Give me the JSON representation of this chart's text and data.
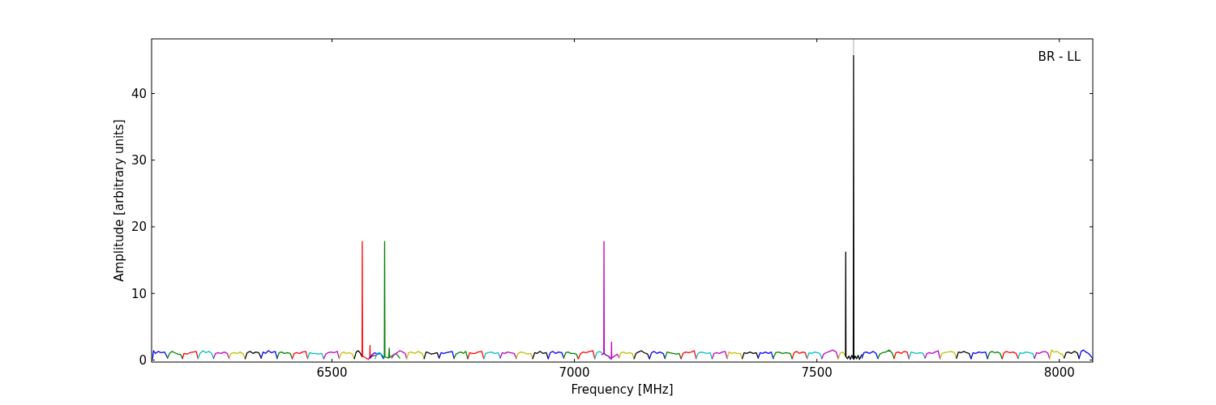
{
  "chart_data": {
    "type": "line",
    "xlabel": "Frequency [MHz]",
    "ylabel": "Amplitude [arbitrary units]",
    "annotations": [
      "BR - LL"
    ],
    "xlim": [
      6128,
      8069
    ],
    "ylim": [
      -0.3,
      48.2
    ],
    "xticks": [
      6500,
      7000,
      7500,
      8000
    ],
    "yticks": [
      0,
      10,
      20,
      30,
      40
    ],
    "grid": false,
    "marker": "none",
    "line_style": "solid",
    "series": [
      {
        "color": "#0000ff",
        "x": [
          6130,
          6132,
          6136,
          6142,
          6148,
          6155,
          6161
        ],
        "values": [
          0.2,
          1.4,
          1.0,
          1.3,
          1.1,
          1.2,
          0.3
        ]
      },
      {
        "color": "#008000",
        "x": [
          6161,
          6165,
          6170,
          6176,
          6182,
          6188,
          6192
        ],
        "values": [
          0.3,
          1.0,
          1.3,
          1.1,
          0.9,
          0.8,
          0.2
        ]
      },
      {
        "color": "#ff0000",
        "x": [
          6192,
          6195,
          6201,
          6207,
          6214,
          6220,
          6224
        ],
        "values": [
          0.3,
          1.0,
          0.9,
          1.1,
          1.2,
          1.3,
          0.2
        ]
      },
      {
        "color": "#00bfbf",
        "x": [
          6224,
          6228,
          6234,
          6240,
          6246,
          6252,
          6256
        ],
        "values": [
          0.3,
          1.0,
          1.4,
          1.1,
          1.3,
          1.0,
          0.2
        ]
      },
      {
        "color": "#bf00bf",
        "x": [
          6256,
          6260,
          6265,
          6271,
          6278,
          6284,
          6288
        ],
        "values": [
          0.3,
          1.0,
          1.1,
          1.0,
          1.2,
          1.0,
          0.2
        ]
      },
      {
        "color": "#bfbf00",
        "x": [
          6288,
          6292,
          6298,
          6304,
          6311,
          6317,
          6321
        ],
        "values": [
          0.3,
          1.0,
          1.1,
          1.0,
          1.2,
          0.9,
          0.2
        ]
      },
      {
        "color": "#000000",
        "x": [
          6321,
          6325,
          6331,
          6337,
          6343,
          6349,
          6354
        ],
        "values": [
          0.2,
          1.1,
          1.3,
          1.0,
          1.2,
          1.1,
          0.3
        ]
      },
      {
        "color": "#0000ff",
        "x": [
          6354,
          6358,
          6363,
          6369,
          6375,
          6383,
          6387
        ],
        "values": [
          0.3,
          1.2,
          1.0,
          1.4,
          1.1,
          1.3,
          0.2
        ]
      },
      {
        "color": "#008000",
        "x": [
          6387,
          6391,
          6396,
          6402,
          6408,
          6414,
          6418
        ],
        "values": [
          0.3,
          1.1,
          1.2,
          1.0,
          1.1,
          1.0,
          0.2
        ]
      },
      {
        "color": "#ff0000",
        "x": [
          6418,
          6422,
          6427,
          6433,
          6439,
          6446,
          6450
        ],
        "values": [
          0.2,
          1.0,
          1.1,
          1.0,
          1.2,
          1.3,
          0.2
        ]
      },
      {
        "color": "#00bfbf",
        "x": [
          6450,
          6454,
          6459,
          6465,
          6471,
          6479,
          6483
        ],
        "values": [
          0.3,
          1.1,
          1.0,
          1.0,
          0.9,
          1.0,
          0.2
        ]
      },
      {
        "color": "#bf00bf",
        "x": [
          6483,
          6487,
          6492,
          6498,
          6504,
          6511,
          6515
        ],
        "values": [
          0.2,
          0.9,
          1.1,
          1.2,
          1.1,
          1.3,
          0.2
        ]
      },
      {
        "color": "#bfbf00",
        "x": [
          6515,
          6519,
          6524,
          6530,
          6536,
          6542,
          6546
        ],
        "values": [
          0.2,
          1.0,
          1.2,
          1.0,
          1.1,
          0.9,
          0.2
        ]
      },
      {
        "color": "#000000",
        "x": [
          6546,
          6550,
          6554,
          6558,
          6562
        ],
        "values": [
          0.2,
          1.2,
          1.4,
          1.1,
          0.5
        ]
      },
      {
        "color": "#ff0000",
        "x": [
          6562,
          6562.5,
          6563,
          6566,
          6570,
          6575,
          6578,
          6578.5,
          6579,
          6583,
          6588,
          6593
        ],
        "values": [
          0.5,
          17.8,
          0.6,
          0.5,
          0.3,
          0.1,
          0.4,
          2.2,
          0.3,
          0.6,
          0.7,
          0.8
        ]
      },
      {
        "color": "#0000ff",
        "x": [
          6578,
          6583,
          6588,
          6594,
          6600,
          6606
        ],
        "values": [
          0.3,
          0.8,
          1.1,
          0.9,
          1.0,
          0.2
        ]
      },
      {
        "color": "#00bfbf",
        "x": [
          6589,
          6593,
          6598,
          6603,
          6608
        ],
        "values": [
          0.2,
          1.0,
          1.1,
          0.8,
          0.3
        ]
      },
      {
        "color": "#008000",
        "x": [
          6606,
          6608,
          6608.6,
          6609.2,
          6612,
          6617,
          6618,
          6619,
          6625,
          6632,
          6640
        ],
        "values": [
          0.3,
          0.6,
          17.8,
          0.5,
          0.4,
          0.3,
          1.8,
          0.4,
          0.7,
          1.0,
          0.3
        ]
      },
      {
        "color": "#bf00bf",
        "x": [
          6623,
          6628,
          6634,
          6640,
          6646,
          6651,
          6654
        ],
        "values": [
          0.3,
          0.8,
          1.1,
          1.4,
          1.2,
          1.0,
          0.2
        ]
      },
      {
        "color": "#bfbf00",
        "x": [
          6654,
          6658,
          6664,
          6671,
          6678,
          6686,
          6690
        ],
        "values": [
          0.2,
          1.1,
          1.2,
          1.0,
          1.3,
          1.0,
          0.2
        ]
      },
      {
        "color": "#000000",
        "x": [
          6690,
          6694,
          6699,
          6705,
          6711,
          6717,
          6721
        ],
        "values": [
          0.2,
          1.2,
          1.1,
          0.9,
          1.0,
          1.1,
          0.3
        ]
      },
      {
        "color": "#0000ff",
        "x": [
          6721,
          6725,
          6730,
          6736,
          6742,
          6748,
          6752
        ],
        "values": [
          0.3,
          1.1,
          1.0,
          1.1,
          1.2,
          1.3,
          0.2
        ]
      },
      {
        "color": "#008000",
        "x": [
          6752,
          6756,
          6761,
          6766,
          6771,
          6776,
          6780
        ],
        "values": [
          0.3,
          0.9,
          1.1,
          1.2,
          1.0,
          1.3,
          0.2
        ]
      },
      {
        "color": "#ff0000",
        "x": [
          6780,
          6784,
          6789,
          6795,
          6801,
          6809,
          6813
        ],
        "values": [
          0.2,
          1.1,
          1.0,
          1.0,
          1.2,
          1.3,
          0.2
        ]
      },
      {
        "color": "#00bfbf",
        "x": [
          6813,
          6817,
          6822,
          6829,
          6836,
          6843,
          6847
        ],
        "values": [
          0.2,
          1.0,
          1.1,
          1.2,
          1.0,
          1.1,
          0.3
        ]
      },
      {
        "color": "#bf00bf",
        "x": [
          6847,
          6851,
          6856,
          6862,
          6868,
          6876,
          6880
        ],
        "values": [
          0.3,
          1.1,
          1.0,
          1.2,
          1.1,
          1.0,
          0.2
        ]
      },
      {
        "color": "#bfbf00",
        "x": [
          6880,
          6884,
          6889,
          6896,
          6903,
          6910,
          6914
        ],
        "values": [
          0.3,
          1.0,
          1.2,
          1.1,
          0.9,
          1.0,
          0.2
        ]
      },
      {
        "color": "#000000",
        "x": [
          6914,
          6918,
          6923,
          6929,
          6935,
          6942,
          6946
        ],
        "values": [
          0.2,
          1.1,
          1.0,
          1.3,
          1.0,
          1.1,
          0.2
        ]
      },
      {
        "color": "#0000ff",
        "x": [
          6946,
          6950,
          6955,
          6961,
          6967,
          6974,
          6978
        ],
        "values": [
          0.2,
          1.1,
          1.3,
          1.0,
          1.2,
          1.1,
          0.3
        ]
      },
      {
        "color": "#008000",
        "x": [
          6978,
          6982,
          6987,
          6993,
          6999,
          7004,
          7008
        ],
        "values": [
          0.3,
          1.1,
          1.2,
          1.0,
          1.0,
          0.9,
          0.2
        ]
      },
      {
        "color": "#ff0000",
        "x": [
          7008,
          7012,
          7017,
          7024,
          7031,
          7038,
          7042
        ],
        "values": [
          0.2,
          0.9,
          1.2,
          1.1,
          1.3,
          1.4,
          0.2
        ]
      },
      {
        "color": "#00bfbf",
        "x": [
          7042,
          7046,
          7052,
          7058,
          7064,
          7070,
          7073
        ],
        "values": [
          0.2,
          1.1,
          1.3,
          1.0,
          0.8,
          0.6,
          0.2
        ]
      },
      {
        "color": "#bf00bf",
        "x": [
          7056,
          7060.5,
          7061,
          7061.5,
          7066,
          7072,
          7076,
          7076.5,
          7077,
          7083,
          7088,
          7092
        ],
        "values": [
          0.8,
          1.0,
          17.8,
          1.0,
          0.7,
          0.5,
          0.1,
          2.7,
          0.3,
          0.6,
          0.9,
          0.4
        ]
      },
      {
        "color": "#bfbf00",
        "x": [
          7092,
          7096,
          7101,
          7107,
          7113,
          7119,
          7123
        ],
        "values": [
          0.3,
          1.1,
          1.2,
          1.0,
          1.1,
          1.0,
          0.2
        ]
      },
      {
        "color": "#000000",
        "x": [
          7123,
          7127,
          7132,
          7138,
          7144,
          7151,
          7155
        ],
        "values": [
          0.2,
          1.0,
          1.2,
          1.4,
          1.1,
          0.9,
          0.2
        ]
      },
      {
        "color": "#0000ff",
        "x": [
          7155,
          7159,
          7164,
          7170,
          7176,
          7183,
          7187
        ],
        "values": [
          0.2,
          1.1,
          1.3,
          1.0,
          1.2,
          1.0,
          0.2
        ]
      },
      {
        "color": "#008000",
        "x": [
          7187,
          7191,
          7196,
          7203,
          7210,
          7216,
          7220
        ],
        "values": [
          0.3,
          1.2,
          1.1,
          1.0,
          0.9,
          1.0,
          0.2
        ]
      },
      {
        "color": "#ff0000",
        "x": [
          7220,
          7224,
          7229,
          7235,
          7241,
          7247,
          7251
        ],
        "values": [
          0.2,
          1.0,
          1.2,
          1.1,
          1.2,
          1.4,
          0.2
        ]
      },
      {
        "color": "#00bfbf",
        "x": [
          7251,
          7255,
          7260,
          7267,
          7274,
          7280,
          7284
        ],
        "values": [
          0.3,
          1.0,
          1.2,
          1.1,
          1.0,
          1.1,
          0.2
        ]
      },
      {
        "color": "#bf00bf",
        "x": [
          7284,
          7288,
          7293,
          7299,
          7305,
          7311,
          7315
        ],
        "values": [
          0.2,
          1.0,
          1.1,
          1.0,
          1.2,
          1.3,
          0.2
        ]
      },
      {
        "color": "#bfbf00",
        "x": [
          7315,
          7319,
          7324,
          7330,
          7336,
          7342,
          7346
        ],
        "values": [
          0.3,
          1.2,
          1.0,
          1.1,
          1.0,
          1.0,
          0.2
        ]
      },
      {
        "color": "#000000",
        "x": [
          7346,
          7350,
          7355,
          7362,
          7369,
          7375,
          7379
        ],
        "values": [
          0.2,
          1.1,
          1.0,
          1.2,
          1.0,
          1.1,
          0.3
        ]
      },
      {
        "color": "#0000ff",
        "x": [
          7379,
          7383,
          7388,
          7394,
          7400,
          7406,
          7410
        ],
        "values": [
          0.3,
          1.1,
          1.0,
          1.2,
          1.0,
          1.2,
          0.2
        ]
      },
      {
        "color": "#008000",
        "x": [
          7410,
          7415,
          7421,
          7429,
          7437,
          7445,
          7449
        ],
        "values": [
          0.3,
          1.1,
          1.2,
          1.0,
          1.1,
          1.0,
          0.2
        ]
      },
      {
        "color": "#ff0000",
        "x": [
          7449,
          7453,
          7458,
          7464,
          7470,
          7476,
          7480
        ],
        "values": [
          0.2,
          1.1,
          1.3,
          1.0,
          1.2,
          1.1,
          0.2
        ]
      },
      {
        "color": "#00bfbf",
        "x": [
          7480,
          7484,
          7489,
          7495,
          7501,
          7506,
          7510
        ],
        "values": [
          0.3,
          1.1,
          1.0,
          1.2,
          1.1,
          1.0,
          0.3
        ]
      },
      {
        "color": "#bf00bf",
        "x": [
          7510,
          7514,
          7519,
          7526,
          7533,
          7540,
          7544
        ],
        "values": [
          0.2,
          0.9,
          1.1,
          1.3,
          1.5,
          1.2,
          0.2
        ]
      },
      {
        "color": "#bfbf00",
        "x": [
          7544,
          7548,
          7552,
          7556,
          7559
        ],
        "values": [
          0.2,
          1.0,
          1.2,
          1.0,
          0.7
        ]
      },
      {
        "color": "#bfbfbf",
        "x": [
          7575.7,
          7575.7
        ],
        "values": [
          45.7,
          48.2
        ]
      },
      {
        "color": "#000000",
        "x": [
          7559,
          7559.5,
          7560,
          7563,
          7566,
          7569,
          7572,
          7575,
          7575.7,
          7576.3,
          7579,
          7582,
          7585,
          7588,
          7591,
          7593
        ],
        "values": [
          0.6,
          16.2,
          0.5,
          0.2,
          0.6,
          0.1,
          0.7,
          0.2,
          45.7,
          0.1,
          0.6,
          0.2,
          0.7,
          0.1,
          0.6,
          0.8
        ]
      },
      {
        "color": "#0000ff",
        "x": [
          7593,
          7597,
          7602,
          7609,
          7616,
          7622,
          7626
        ],
        "values": [
          0.3,
          1.1,
          1.2,
          1.0,
          1.3,
          1.0,
          0.2
        ]
      },
      {
        "color": "#008000",
        "x": [
          7626,
          7630,
          7635,
          7642,
          7649,
          7655,
          7659
        ],
        "values": [
          0.3,
          0.9,
          1.1,
          1.2,
          1.5,
          1.1,
          0.3
        ]
      },
      {
        "color": "#ff0000",
        "x": [
          7659,
          7663,
          7668,
          7674,
          7680,
          7686,
          7690
        ],
        "values": [
          0.2,
          1.1,
          1.2,
          1.0,
          1.3,
          1.2,
          0.2
        ]
      },
      {
        "color": "#00bfbf",
        "x": [
          7690,
          7694,
          7699,
          7706,
          7713,
          7719,
          7723
        ],
        "values": [
          0.2,
          1.2,
          1.1,
          1.0,
          1.1,
          1.0,
          0.3
        ]
      },
      {
        "color": "#bf00bf",
        "x": [
          7723,
          7727,
          7732,
          7738,
          7744,
          7750,
          7754
        ],
        "values": [
          0.3,
          1.0,
          1.1,
          1.0,
          1.2,
          1.4,
          0.2
        ]
      },
      {
        "color": "#bfbf00",
        "x": [
          7754,
          7758,
          7763,
          7770,
          7777,
          7784,
          7788
        ],
        "values": [
          0.2,
          1.0,
          1.1,
          1.2,
          1.3,
          1.1,
          0.2
        ]
      },
      {
        "color": "#000000",
        "x": [
          7788,
          7792,
          7797,
          7803,
          7809,
          7814,
          7818
        ],
        "values": [
          0.3,
          1.2,
          1.1,
          1.3,
          1.1,
          1.0,
          0.2
        ]
      },
      {
        "color": "#0000ff",
        "x": [
          7818,
          7822,
          7827,
          7834,
          7841,
          7848,
          7852
        ],
        "values": [
          0.2,
          1.1,
          1.0,
          1.2,
          1.1,
          1.2,
          0.2
        ]
      },
      {
        "color": "#008000",
        "x": [
          7852,
          7856,
          7861,
          7867,
          7873,
          7878,
          7882
        ],
        "values": [
          0.2,
          1.1,
          1.3,
          1.1,
          1.2,
          1.0,
          0.2
        ]
      },
      {
        "color": "#ff0000",
        "x": [
          7882,
          7886,
          7891,
          7898,
          7905,
          7911,
          7915
        ],
        "values": [
          0.2,
          1.1,
          1.3,
          1.1,
          1.2,
          1.0,
          0.2
        ]
      },
      {
        "color": "#00bfbf",
        "x": [
          7915,
          7919,
          7924,
          7931,
          7938,
          7945,
          7949
        ],
        "values": [
          0.3,
          1.1,
          1.0,
          1.2,
          1.1,
          1.0,
          0.2
        ]
      },
      {
        "color": "#bf00bf",
        "x": [
          7949,
          7953,
          7958,
          7964,
          7970,
          7976,
          7980
        ],
        "values": [
          0.3,
          1.1,
          1.0,
          1.2,
          1.3,
          1.1,
          0.2
        ]
      },
      {
        "color": "#bfbf00",
        "x": [
          7980,
          7984,
          7989,
          7995,
          8001,
          8006,
          8010
        ],
        "values": [
          0.2,
          1.5,
          1.2,
          1.3,
          1.0,
          0.9,
          0.3
        ]
      },
      {
        "color": "#000000",
        "x": [
          8010,
          8014,
          8019,
          8025,
          8031,
          8037,
          8041
        ],
        "values": [
          0.3,
          1.1,
          1.2,
          1.0,
          1.3,
          1.1,
          0.2
        ]
      },
      {
        "color": "#0000ff",
        "x": [
          8041,
          8045,
          8050,
          8055,
          8060,
          8065,
          8069
        ],
        "values": [
          0.3,
          1.3,
          1.5,
          1.2,
          1.0,
          0.6,
          0.2
        ]
      }
    ]
  }
}
